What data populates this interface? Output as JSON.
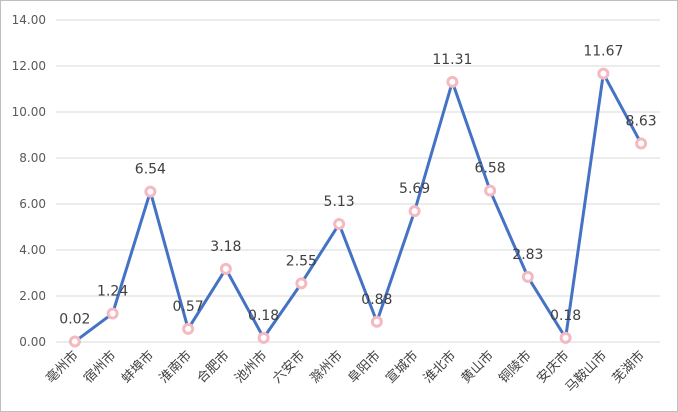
{
  "chart_data": {
    "type": "line",
    "title": "",
    "xlabel": "",
    "ylabel": "",
    "ylim": [
      0,
      14
    ],
    "ytick_step": 2,
    "ytick_decimals": 2,
    "grid": true,
    "legend": "none",
    "categories": [
      "亳州市",
      "宿州市",
      "蚌埠市",
      "淮南市",
      "合肥市",
      "池州市",
      "六安市",
      "滁州市",
      "阜阳市",
      "宣城市",
      "淮北市",
      "黄山市",
      "铜陵市",
      "安庆市",
      "马鞍山市",
      "芜湖市"
    ],
    "series": [
      {
        "name": "",
        "values": [
          0.02,
          1.24,
          6.54,
          0.57,
          3.18,
          0.18,
          2.55,
          5.13,
          0.88,
          5.69,
          11.31,
          6.58,
          2.83,
          0.18,
          11.67,
          8.63
        ],
        "labels": [
          "0.02",
          "1.24",
          "6.54",
          "0.57",
          "3.18",
          "0.18",
          "2.55",
          "5.13",
          "0.88",
          "5.69",
          "11.31",
          "6.58",
          "2.83",
          "0.18",
          "11.67",
          "8.63"
        ]
      }
    ],
    "colors": {
      "line": "#4472c4",
      "marker_stroke": "#f4b9c1",
      "marker_fill": "#ffffff"
    }
  }
}
